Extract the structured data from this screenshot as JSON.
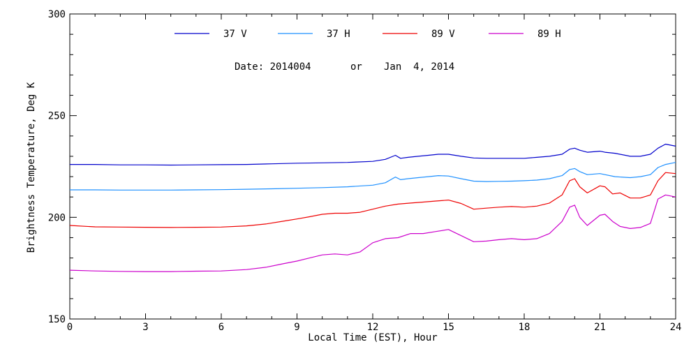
{
  "chart_data": {
    "type": "line",
    "xlabel": "Local Time (EST), Hour",
    "ylabel": "Brightness Temperature, Deg K",
    "xlim": [
      0,
      24
    ],
    "ylim": [
      150,
      300
    ],
    "xticks": [
      0,
      3,
      6,
      9,
      12,
      15,
      18,
      21,
      24
    ],
    "yticks": [
      150,
      200,
      250,
      300
    ],
    "xtick_labels": [
      "0",
      "3",
      "6",
      "9",
      "12",
      "15",
      "18",
      "21",
      "24"
    ],
    "ytick_labels": [
      "150",
      "200",
      "250",
      "300"
    ],
    "grid": false,
    "legend_position": "top-center",
    "annotation": {
      "date_label": "Date: 2014004",
      "or_label": "or",
      "date_text": "Jan  4, 2014"
    },
    "series": [
      {
        "name": "37 V",
        "color": "#0000cc",
        "x": [
          0,
          1,
          2,
          3,
          4,
          5,
          6,
          7,
          8,
          9,
          10,
          11,
          12,
          12.5,
          12.9,
          13.1,
          13.4,
          13.8,
          14.2,
          14.6,
          15,
          15.5,
          16,
          16.5,
          17,
          17.5,
          18,
          18.5,
          19,
          19.5,
          19.8,
          20,
          20.2,
          20.5,
          21,
          21.2,
          21.6,
          22.2,
          22.6,
          23,
          23.3,
          23.6,
          24
        ],
        "y": [
          226,
          226,
          225.8,
          225.8,
          225.7,
          225.8,
          225.9,
          226,
          226.3,
          226.6,
          226.8,
          227,
          227.5,
          228.5,
          230.5,
          229,
          229.5,
          230,
          230.5,
          231,
          231,
          230,
          229.2,
          229,
          229,
          229,
          229,
          229.5,
          230,
          231,
          233.5,
          234,
          233,
          232,
          232.5,
          232,
          231.5,
          230,
          230,
          231,
          234,
          236,
          235
        ]
      },
      {
        "name": "37 H",
        "color": "#1e90ff",
        "x": [
          0,
          1,
          2,
          3,
          4,
          5,
          6,
          7,
          8,
          9,
          10,
          11,
          12,
          12.5,
          12.9,
          13.1,
          13.4,
          13.8,
          14.2,
          14.6,
          15,
          15.5,
          16,
          16.5,
          17,
          17.5,
          18,
          18.5,
          19,
          19.5,
          19.8,
          20,
          20.2,
          20.5,
          21,
          21.2,
          21.6,
          22.2,
          22.6,
          23,
          23.3,
          23.6,
          24
        ],
        "y": [
          213.5,
          213.5,
          213.4,
          213.4,
          213.4,
          213.5,
          213.6,
          213.8,
          214,
          214.3,
          214.6,
          215,
          215.8,
          217,
          219.8,
          218.5,
          219,
          219.5,
          220,
          220.5,
          220.3,
          219,
          217.8,
          217.6,
          217.7,
          217.8,
          218,
          218.3,
          219,
          220.5,
          223.5,
          224,
          222.5,
          221,
          221.5,
          221,
          220,
          219.5,
          220,
          221,
          224.5,
          226,
          227
        ]
      },
      {
        "name": "89 V",
        "color": "#ee0000",
        "x": [
          0,
          1,
          2,
          3,
          4,
          5,
          6,
          7,
          7.8,
          8.5,
          9,
          9.5,
          10,
          10.5,
          11,
          11.5,
          12,
          12.5,
          13,
          13.5,
          14,
          14.5,
          15,
          15.5,
          16,
          16.5,
          17,
          17.5,
          18,
          18.5,
          19,
          19.5,
          19.8,
          20,
          20.2,
          20.5,
          21,
          21.2,
          21.5,
          21.8,
          22.2,
          22.6,
          23,
          23.3,
          23.6,
          24
        ],
        "y": [
          196,
          195.3,
          195.2,
          195.1,
          195,
          195.1,
          195.2,
          195.8,
          196.8,
          198.2,
          199.2,
          200.3,
          201.5,
          202,
          202,
          202.5,
          204,
          205.5,
          206.5,
          207,
          207.5,
          208,
          208.5,
          206.8,
          204,
          204.5,
          205,
          205.3,
          205,
          205.5,
          207,
          211,
          218,
          219,
          215,
          212,
          215.5,
          215,
          211.5,
          212,
          209.5,
          209.5,
          211,
          218,
          222,
          221.5
        ]
      },
      {
        "name": "89 H",
        "color": "#cc00cc",
        "x": [
          0,
          1,
          2,
          3,
          4,
          5,
          6,
          7,
          7.8,
          8.5,
          9,
          9.5,
          10,
          10.5,
          11,
          11.5,
          12,
          12.5,
          13,
          13.5,
          14,
          14.5,
          15,
          15.5,
          16,
          16.5,
          17,
          17.5,
          18,
          18.5,
          19,
          19.5,
          19.8,
          20,
          20.2,
          20.5,
          21,
          21.2,
          21.5,
          21.8,
          22.2,
          22.6,
          23,
          23.3,
          23.6,
          24
        ],
        "y": [
          174,
          173.6,
          173.4,
          173.3,
          173.3,
          173.5,
          173.6,
          174.3,
          175.5,
          177.3,
          178.5,
          180,
          181.5,
          182,
          181.5,
          183,
          187.5,
          189.5,
          190,
          192,
          192,
          193,
          194,
          191,
          188,
          188.3,
          189,
          189.5,
          189,
          189.5,
          192,
          198,
          205,
          206,
          200,
          196,
          201,
          201.5,
          198,
          195.5,
          194.5,
          195,
          197,
          209,
          211,
          210
        ]
      }
    ]
  }
}
